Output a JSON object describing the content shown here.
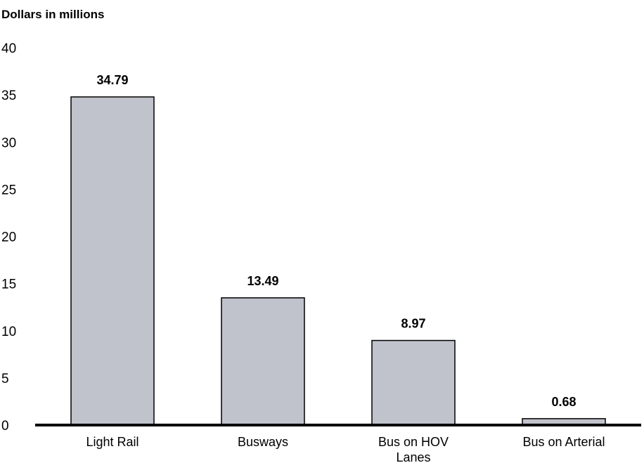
{
  "chart_data": {
    "type": "bar",
    "ylabel": "Dollars in millions",
    "categories": [
      [
        "Light Rail"
      ],
      [
        "Busways"
      ],
      [
        "Bus on HOV",
        "Lanes"
      ],
      [
        "Bus on Arterial"
      ]
    ],
    "values": [
      34.79,
      13.49,
      8.97,
      0.68
    ],
    "value_labels": [
      "34.79",
      "13.49",
      "8.97",
      "0.68"
    ],
    "ylim": [
      0,
      40
    ],
    "yticks": [
      "0",
      "5",
      "10",
      "15",
      "20",
      "25",
      "30",
      "35",
      "40"
    ],
    "grid": false,
    "colors": {
      "bar": "#c0c3cb",
      "outline": "#000000"
    }
  }
}
